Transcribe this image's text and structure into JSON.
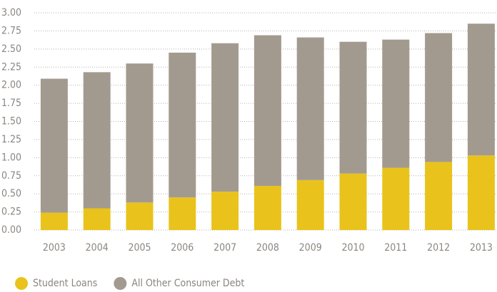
{
  "chart_data": {
    "type": "stacked_bar",
    "categories": [
      "2003",
      "2004",
      "2005",
      "2006",
      "2007",
      "2008",
      "2009",
      "2010",
      "2011",
      "2012",
      "2013"
    ],
    "series": [
      {
        "name": "Student Loans",
        "color": "#e9c31c",
        "values": [
          0.24,
          0.3,
          0.38,
          0.45,
          0.53,
          0.61,
          0.69,
          0.78,
          0.86,
          0.94,
          1.03
        ]
      },
      {
        "name": "All Other Consumer Debt",
        "color": "#a39a8f",
        "values": [
          1.85,
          1.88,
          1.92,
          2.0,
          2.05,
          2.08,
          1.97,
          1.82,
          1.77,
          1.78,
          1.82
        ]
      }
    ],
    "ylim": [
      0,
      3
    ],
    "yticks": [
      {
        "value": 0,
        "label": "0.00"
      },
      0.25,
      {
        "value": 0.5,
        "label": "0.50"
      },
      0.75,
      {
        "value": 1,
        "label": "1.00"
      },
      1.25,
      {
        "value": 1.5,
        "label": "1.50"
      },
      1.75,
      {
        "value": 2,
        "label": "2.00"
      },
      2.25,
      {
        "value": 2.5,
        "label": "2.50"
      },
      2.75,
      {
        "value": 3,
        "label": "3.00"
      }
    ],
    "grid": true
  }
}
